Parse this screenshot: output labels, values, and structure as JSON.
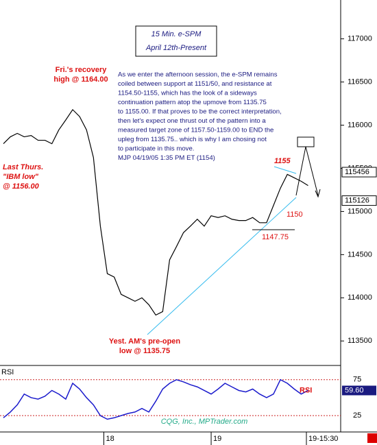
{
  "chart_data": [
    {
      "type": "line",
      "title": "15 Min. e-SPM",
      "subtitle": "April 12th-Present",
      "series": [
        {
          "name": "e-SPM",
          "color": "#000000",
          "values": [
            115785,
            115865,
            115905,
            115865,
            115880,
            115825,
            115825,
            115785,
            115945,
            116060,
            116180,
            116100,
            115945,
            115625,
            114830,
            114280,
            114240,
            114040,
            114000,
            113960,
            114000,
            113920,
            113800,
            113840,
            114440,
            114595,
            114755,
            114830,
            114910,
            114830,
            114950,
            114930,
            114950,
            114910,
            114895,
            114895,
            114930,
            114870,
            114870,
            115070,
            115270,
            115430,
            115390,
            115350,
            115300
          ]
        }
      ],
      "xlim": [
        0,
        49.2
      ],
      "xticks": [
        {
          "value": 14.5,
          "label": "18"
        },
        {
          "value": 30,
          "label": "19"
        }
      ],
      "xlabel_end": "19-15:30",
      "ylim": [
        113240,
        117450
      ],
      "yticks": [
        113500,
        114000,
        114500,
        115000,
        115500,
        116000,
        116500,
        117000
      ],
      "price_labels": [
        115456,
        115126
      ],
      "annotations": {
        "recovery": [
          "Fri.'s recovery",
          "high @ 1164.00"
        ],
        "ibm": [
          "Last Thurs.",
          "\"IBM low\"",
          "@ 1156.00"
        ],
        "preopen": [
          "Yest. AM's pre-open",
          "low @ 1135.75"
        ],
        "level_1155": "1155",
        "level_1150": "1150",
        "level_1147": "1147.75",
        "comment": [
          "As we enter the afternoon session, the e-SPM remains",
          "coiled between support at 1151/50, and resistance at",
          "1154.50-1155, which has the look of a sideways",
          "continuation pattern atop the upmove from 1135.75",
          "to 1155.00. If that proves to be the correct interpretation,",
          "then let's expect one thrust out of the pattern into a",
          "measured target zone of 1157.50-1159.00 to END the",
          "upleg from 1135.75.. which is why I am chosing not",
          "to participate in this move.",
          "MJP 04/19/05 1:35 PM ET  (1154)"
        ]
      }
    },
    {
      "type": "line",
      "title": "RSI",
      "series": [
        {
          "name": "RSI",
          "color": "#1a1acc",
          "values": [
            22,
            30,
            40,
            55,
            50,
            48,
            52,
            60,
            55,
            48,
            70,
            62,
            50,
            40,
            25,
            20,
            22,
            25,
            28,
            30,
            35,
            30,
            45,
            62,
            70,
            75,
            72,
            68,
            65,
            60,
            55,
            62,
            70,
            65,
            60,
            58,
            62,
            55,
            50,
            55,
            75,
            70,
            62,
            55,
            60
          ]
        }
      ],
      "ylim": [
        7,
        91
      ],
      "yticks": [
        25,
        75
      ],
      "value_label": "59.60",
      "footer": "CQG, Inc., MPTrader.com"
    }
  ]
}
